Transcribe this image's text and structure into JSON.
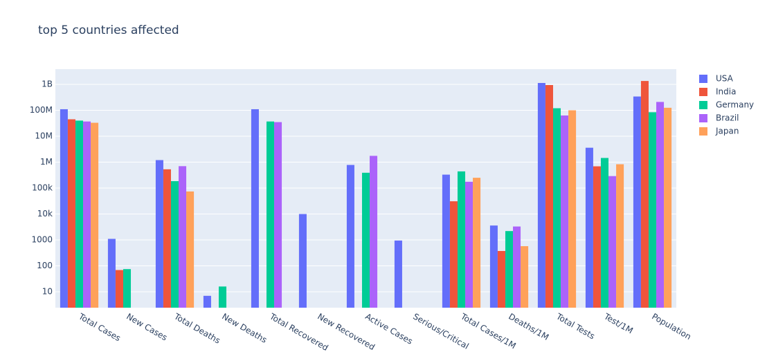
{
  "chart_data": {
    "type": "bar",
    "title": "top 5 countries affected",
    "log_y": true,
    "grid": true,
    "legend_position": "right",
    "categories": [
      "Total Cases",
      "New Cases",
      "Total Deaths",
      "New Deaths",
      "Total Recovered",
      "New Recovered",
      "Active Cases",
      "Serious/Critical",
      "Total Cases/1M",
      "Deaths/1M",
      "Total Tests",
      "Test/1M",
      "Population"
    ],
    "series": [
      {
        "name": "USA",
        "color": "#636efa",
        "values": [
          110000000,
          1100,
          1200000,
          7,
          110000000,
          10000,
          780000,
          950,
          330000,
          3600,
          1130000000,
          3600000,
          340000000
        ]
      },
      {
        "name": "India",
        "color": "#ef553b",
        "values": [
          45000000,
          69,
          530000,
          null,
          null,
          null,
          null,
          null,
          31000,
          375,
          940000000,
          690000,
          1350000000
        ]
      },
      {
        "name": "Germany",
        "color": "#00cc96",
        "values": [
          40000000,
          75,
          185000,
          16,
          37000000,
          null,
          390000,
          null,
          440000,
          2200,
          120000000,
          1450000,
          84000000
        ]
      },
      {
        "name": "Brazil",
        "color": "#ab63fa",
        "values": [
          37000000,
          null,
          700000,
          null,
          35000000,
          null,
          1750000,
          null,
          175000,
          3300,
          63000000,
          290000,
          210000000
        ]
      },
      {
        "name": "Japan",
        "color": "#ffa15a",
        "values": [
          33000000,
          null,
          74000,
          null,
          null,
          null,
          null,
          null,
          250000,
          575,
          100000000,
          830000,
          125000000
        ]
      }
    ],
    "ylim": [
      2.44,
      3860000000
    ],
    "yticks": [
      10,
      100,
      1000,
      {
        "value": 10000,
        "label": "10k"
      },
      {
        "value": 100000,
        "label": "100k"
      },
      {
        "value": 1000000,
        "label": "1M"
      },
      {
        "value": 10000000,
        "label": "10M"
      },
      {
        "value": 100000000,
        "label": "100M"
      },
      {
        "value": 1000000000,
        "label": "1B"
      }
    ]
  }
}
